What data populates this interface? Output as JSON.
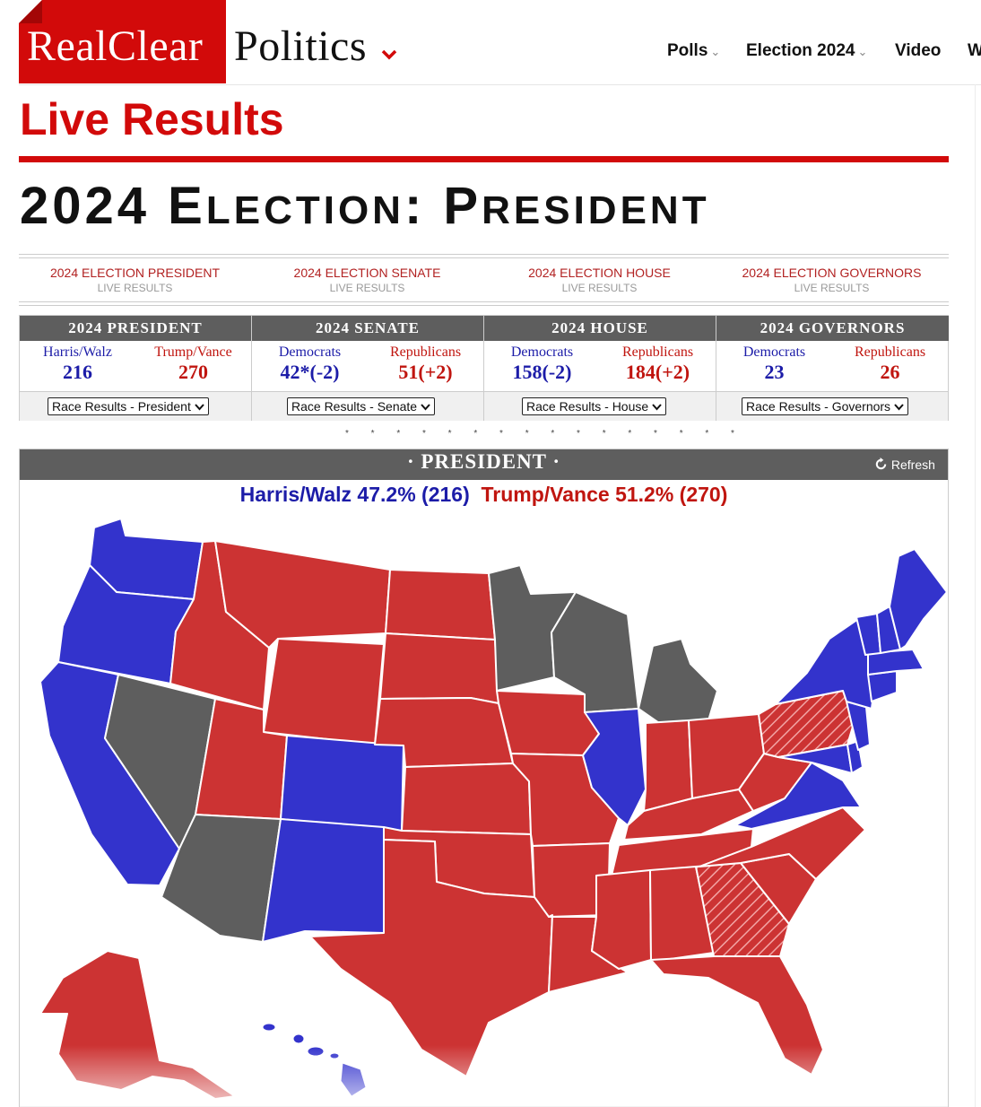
{
  "header": {
    "logo_part1": "RealClear",
    "logo_part2": "Politics",
    "logo_chevron": "chevron-down-icon",
    "nav": [
      {
        "label": "Polls",
        "has_caret": true
      },
      {
        "label": "Election 2024",
        "has_caret": true
      },
      {
        "label": "Video",
        "has_caret": false
      },
      {
        "label": "W",
        "has_caret": false
      }
    ]
  },
  "page": {
    "kicker": "Live Results",
    "title_num": "2024",
    "title_a1": "E",
    "title_a2": "LECTION",
    "title_colon": ":",
    "title_b1": "P",
    "title_b2": "RESIDENT"
  },
  "tabs": [
    {
      "label": "2024 ELECTION PRESIDENT",
      "sub": "LIVE RESULTS"
    },
    {
      "label": "2024 ELECTION SENATE",
      "sub": "LIVE RESULTS"
    },
    {
      "label": "2024 ELECTION HOUSE",
      "sub": "LIVE RESULTS"
    },
    {
      "label": "2024 ELECTION GOVERNORS",
      "sub": "LIVE RESULTS"
    }
  ],
  "summary": [
    {
      "title": "2024 PRESIDENT",
      "left_name": "Harris/Walz",
      "left_value": "216",
      "right_name": "Trump/Vance",
      "right_value": "270",
      "select": "Race Results - President"
    },
    {
      "title": "2024 SENATE",
      "left_name": "Democrats",
      "left_value": "42*(-2)",
      "right_name": "Republicans",
      "right_value": "51(+2)",
      "select": "Race Results - Senate"
    },
    {
      "title": "2024 HOUSE",
      "left_name": "Democrats",
      "left_value": "158(-2)",
      "right_name": "Republicans",
      "right_value": "184(+2)",
      "select": "Race Results - House"
    },
    {
      "title": "2024 GOVERNORS",
      "left_name": "Democrats",
      "left_value": "23",
      "right_name": "Republicans",
      "right_value": "26",
      "select": "Race Results - Governors"
    }
  ],
  "separator": "* * * * * * * * * * * * * * * *",
  "map_panel": {
    "title": "· PRESIDENT ·",
    "refresh_label": "Refresh",
    "refresh_icon": "refresh-icon",
    "harris": "Harris/Walz 47.2% (216)",
    "trump": "Trump/Vance 51.2% (270)"
  },
  "colors": {
    "brand_red": "#d20a0a",
    "dem_blue": "#3333cc",
    "rep_red": "#cc3333",
    "undecided_gray": "#5e5e5e"
  }
}
